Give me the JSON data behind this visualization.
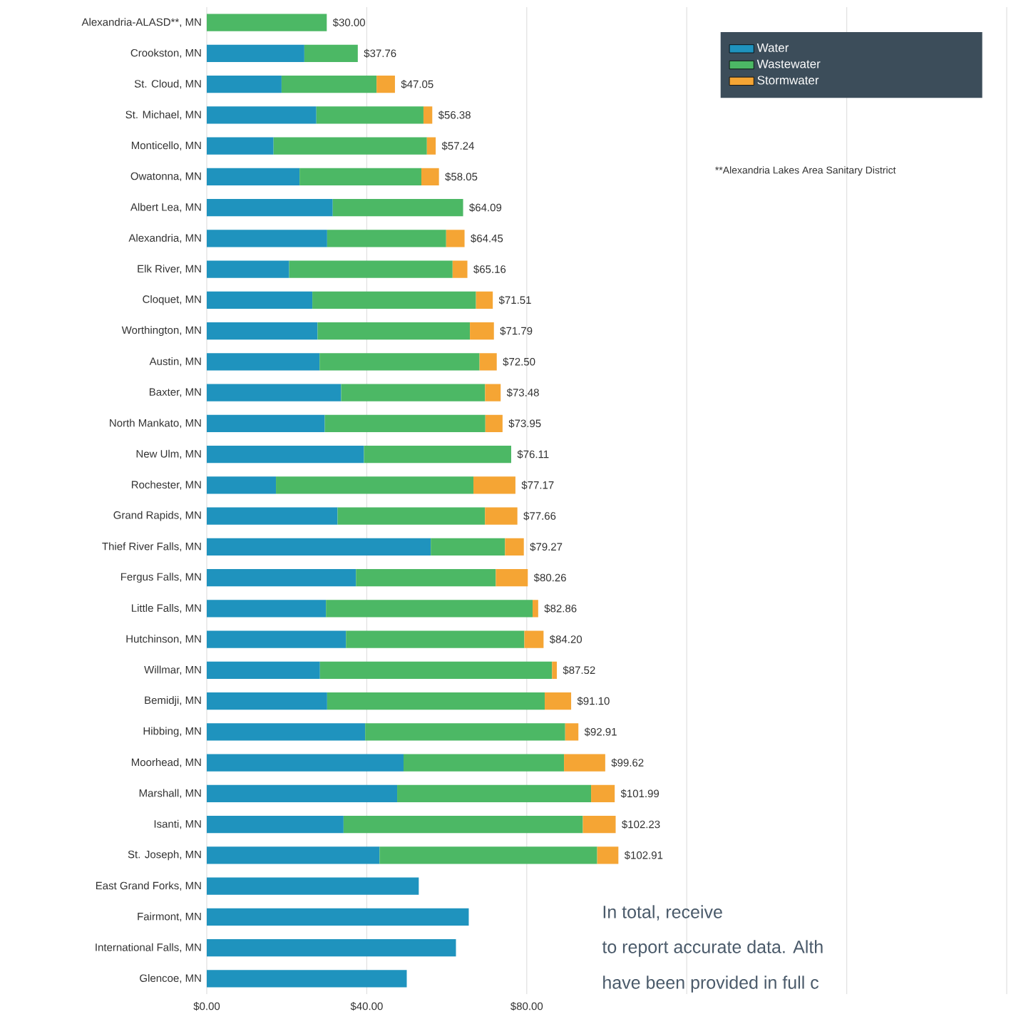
{
  "chart_data": {
    "type": "bar",
    "orientation": "horizontal",
    "stacked": true,
    "categories": [
      "Alexandria-ALASD**, MN",
      "Crookston, MN",
      "St. Cloud, MN",
      "St. Michael, MN",
      "Monticello, MN",
      "Owatonna, MN",
      "Albert Lea, MN",
      "Alexandria, MN",
      "Elk River, MN",
      "Cloquet, MN",
      "Worthington, MN",
      "Austin, MN",
      "Baxter, MN",
      "North Mankato, MN",
      "New Ulm, MN",
      "Rochester, MN",
      "Grand Rapids, MN",
      "Thief River Falls, MN",
      "Fergus Falls, MN",
      "Little Falls, MN",
      "Hutchinson, MN",
      "Willmar, MN",
      "Bemidji, MN",
      "Hibbing, MN",
      "Moorhead, MN",
      "Marshall, MN",
      "Isanti, MN",
      "St. Joseph, MN",
      "East Grand Forks, MN",
      "Fairmont, MN",
      "International Falls, MN",
      "Glencoe, MN"
    ],
    "series": [
      {
        "name": "Water",
        "color": "#1f93be",
        "values": [
          0,
          24.4,
          18.7,
          27.4,
          16.7,
          23.2,
          31.5,
          30.1,
          20.6,
          26.4,
          27.7,
          28.2,
          33.6,
          29.5,
          39.3,
          17.3,
          32.7,
          56.0,
          37.3,
          29.8,
          34.8,
          28.3,
          30.1,
          39.6,
          49.2,
          47.6,
          34.2,
          43.2,
          53.0,
          65.5,
          62.3,
          50.0
        ]
      },
      {
        "name": "Wastewater",
        "color": "#4cb865",
        "values": [
          30.0,
          13.36,
          23.75,
          26.78,
          38.34,
          30.45,
          32.59,
          29.75,
          40.86,
          40.91,
          38.09,
          40.0,
          35.98,
          40.15,
          36.81,
          49.37,
          36.86,
          18.57,
          34.96,
          51.66,
          44.6,
          58.02,
          54.4,
          50.01,
          40.12,
          48.49,
          59.83,
          54.41,
          null,
          null,
          null,
          null
        ]
      },
      {
        "name": "Stormwater",
        "color": "#f5a534",
        "values": [
          0,
          0,
          4.6,
          2.2,
          2.2,
          4.4,
          0,
          4.6,
          3.7,
          4.2,
          6.0,
          4.3,
          3.9,
          4.3,
          0,
          10.5,
          8.1,
          4.7,
          8.0,
          1.4,
          4.8,
          1.2,
          6.6,
          3.3,
          10.3,
          5.9,
          8.2,
          5.3,
          null,
          null,
          null,
          null
        ]
      }
    ],
    "totals": [
      "$30.00",
      "$37.76",
      "$47.05",
      "$56.38",
      "$57.24",
      "$58.05",
      "$64.09",
      "$64.45",
      "$65.16",
      "$71.51",
      "$71.79",
      "$72.50",
      "$73.48",
      "$73.95",
      "$76.11",
      "$77.17",
      "$77.66",
      "$79.27",
      "$80.26",
      "$82.86",
      "$84.20",
      "$87.52",
      "$91.10",
      "$92.91",
      "$99.62",
      "$101.99",
      "$102.23",
      "$102.91",
      null,
      null,
      null,
      null
    ],
    "xlim": [
      0,
      200
    ],
    "xticks": [
      {
        "value": 0,
        "label": "$0.00"
      },
      {
        "value": 40,
        "label": "$40.00"
      },
      {
        "value": 80,
        "label": "$80.00"
      },
      {
        "value": 120,
        "label": null
      },
      {
        "value": 160,
        "label": null
      },
      {
        "value": 200,
        "label": null
      }
    ],
    "grid": "x",
    "legend": "top right",
    "annotations": [
      "**Alexandria Lakes Area Sanitary District",
      "In total, receive",
      "to report accurate data. Alth",
      "have been provided in full c"
    ]
  }
}
